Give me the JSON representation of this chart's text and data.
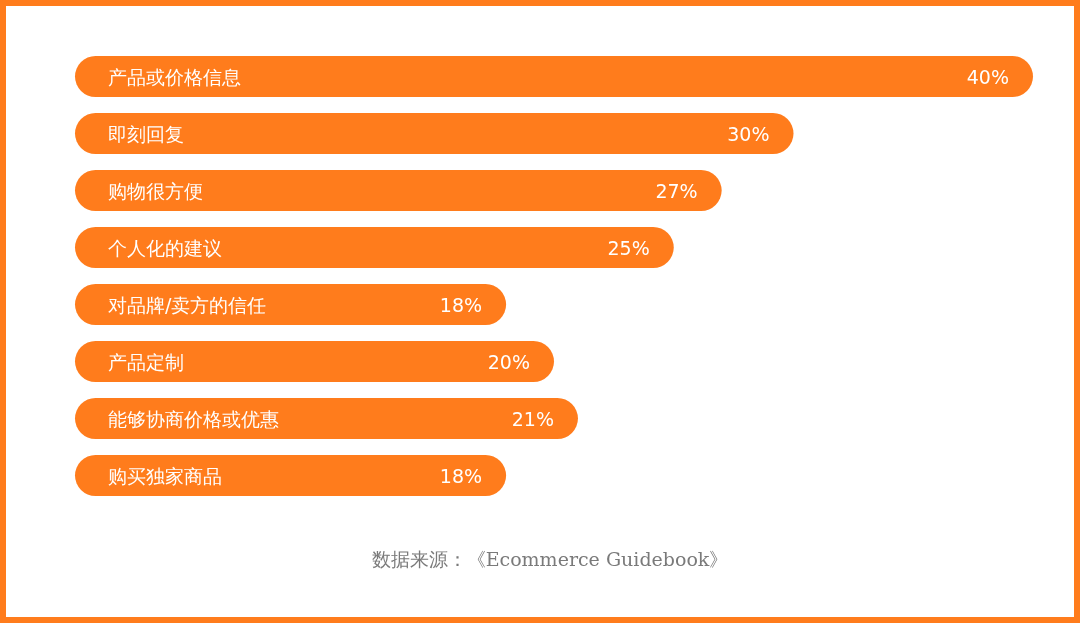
{
  "chart_data": {
    "type": "bar",
    "orientation": "horizontal",
    "categories": [
      "产品或价格信息",
      "即刻回复",
      "购物很方便",
      "个人化的建议",
      "对品牌/卖方的信任",
      "产品定制",
      "能够协商价格或优惠",
      "购买独家商品"
    ],
    "values": [
      40,
      30,
      27,
      25,
      18,
      20,
      21,
      18
    ],
    "value_labels": [
      "40%",
      "30%",
      "27%",
      "25%",
      "18%",
      "20%",
      "21%",
      "18%"
    ],
    "color": "#ff7c1c",
    "annotations": [
      "数据来源：《Ecommerce Guidebook》"
    ]
  }
}
